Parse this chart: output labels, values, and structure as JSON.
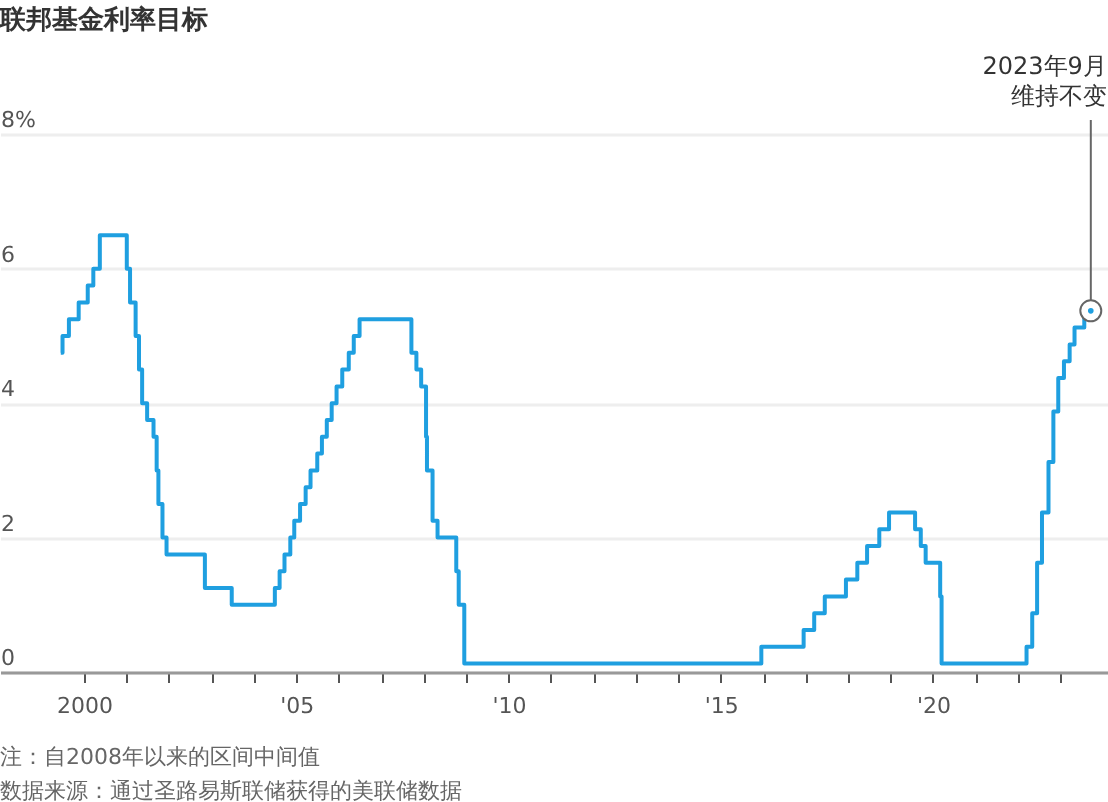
{
  "chart_data": {
    "type": "step",
    "title": "联邦基金利率目标",
    "x": [
      "1999-06-15",
      "1999-06-30",
      "1999-08-24",
      "1999-11-16",
      "2000-02-02",
      "2000-03-21",
      "2000-05-16",
      "2001-01-03",
      "2001-01-31",
      "2001-03-20",
      "2001-04-18",
      "2001-05-15",
      "2001-06-27",
      "2001-08-21",
      "2001-09-17",
      "2001-10-02",
      "2001-11-06",
      "2001-12-11",
      "2002-11-06",
      "2003-06-25",
      "2004-06-30",
      "2004-08-10",
      "2004-09-21",
      "2004-11-10",
      "2004-12-14",
      "2005-02-02",
      "2005-03-22",
      "2005-05-03",
      "2005-06-30",
      "2005-08-09",
      "2005-09-20",
      "2005-11-01",
      "2005-12-13",
      "2006-01-31",
      "2006-03-28",
      "2006-05-10",
      "2006-06-29",
      "2007-09-18",
      "2007-10-31",
      "2007-12-11",
      "2008-01-22",
      "2008-01-30",
      "2008-03-18",
      "2008-04-30",
      "2008-10-08",
      "2008-10-29",
      "2008-12-16",
      "2015-12-16",
      "2016-12-14",
      "2017-03-15",
      "2017-06-14",
      "2017-12-13",
      "2018-03-21",
      "2018-06-13",
      "2018-09-26",
      "2018-12-19",
      "2019-07-31",
      "2019-09-18",
      "2019-10-30",
      "2020-03-03",
      "2020-03-15",
      "2022-03-16",
      "2022-05-04",
      "2022-06-15",
      "2022-07-27",
      "2022-09-21",
      "2022-11-02",
      "2022-12-14",
      "2023-02-01",
      "2023-03-22",
      "2023-05-03",
      "2023-07-26",
      "2023-09-20"
    ],
    "series": [
      {
        "color": "#1f9fe0",
        "values": [
          4.75,
          5.0,
          5.25,
          5.5,
          5.75,
          6.0,
          6.5,
          6.0,
          5.5,
          5.0,
          4.5,
          4.0,
          3.75,
          3.5,
          3.0,
          2.5,
          2.0,
          1.75,
          1.25,
          1.0,
          1.25,
          1.5,
          1.75,
          2.0,
          2.25,
          2.5,
          2.75,
          3.0,
          3.25,
          3.5,
          3.75,
          4.0,
          4.25,
          4.5,
          4.75,
          5.0,
          5.25,
          4.75,
          4.5,
          4.25,
          3.5,
          3.0,
          2.25,
          2.0,
          1.5,
          1.0,
          0.125,
          0.375,
          0.625,
          0.875,
          1.125,
          1.375,
          1.625,
          1.875,
          2.125,
          2.375,
          2.125,
          1.875,
          1.625,
          1.125,
          0.125,
          0.375,
          0.875,
          1.625,
          2.375,
          3.125,
          3.875,
          4.375,
          4.625,
          4.875,
          5.125,
          5.375,
          5.375
        ]
      }
    ],
    "xlim": [
      "1998-01-08",
      "2024-02-15"
    ],
    "xticks": [
      {
        "value": "2000-01-01",
        "label": "2000"
      },
      {
        "value": "2001-01-01",
        "label": null
      },
      {
        "value": "2002-01-01",
        "label": null
      },
      {
        "value": "2003-01-01",
        "label": null
      },
      {
        "value": "2004-01-01",
        "label": null
      },
      {
        "value": "2005-01-01",
        "label": "'05"
      },
      {
        "value": "2006-01-01",
        "label": null
      },
      {
        "value": "2007-01-01",
        "label": null
      },
      {
        "value": "2008-01-01",
        "label": null
      },
      {
        "value": "2009-01-01",
        "label": null
      },
      {
        "value": "2010-01-01",
        "label": "'10"
      },
      {
        "value": "2011-01-01",
        "label": null
      },
      {
        "value": "2012-01-01",
        "label": null
      },
      {
        "value": "2013-01-01",
        "label": null
      },
      {
        "value": "2014-01-01",
        "label": null
      },
      {
        "value": "2015-01-01",
        "label": "'15"
      },
      {
        "value": "2016-01-01",
        "label": null
      },
      {
        "value": "2017-01-01",
        "label": null
      },
      {
        "value": "2018-01-01",
        "label": null
      },
      {
        "value": "2019-01-01",
        "label": null
      },
      {
        "value": "2020-01-01",
        "label": "'20"
      },
      {
        "value": "2021-01-01",
        "label": null
      },
      {
        "value": "2022-01-01",
        "label": null
      },
      {
        "value": "2023-01-01",
        "label": null
      }
    ],
    "ylim": [
      0,
      10
    ],
    "yticks": [
      {
        "value": 0,
        "label": "0"
      },
      {
        "value": 2,
        "label": "2"
      },
      {
        "value": 4,
        "label": "4"
      },
      {
        "value": 6,
        "label": "6"
      },
      {
        "value": 8,
        "label": "8%"
      }
    ],
    "grid": "y",
    "annotations": [
      {
        "text": "2023年9月维持不变",
        "x": "2023-09-20",
        "y": 5.375
      },
      "注：自2008年以来的区间中间值",
      "数据来源：通过圣路易斯联储获得的美联储数据"
    ]
  }
}
